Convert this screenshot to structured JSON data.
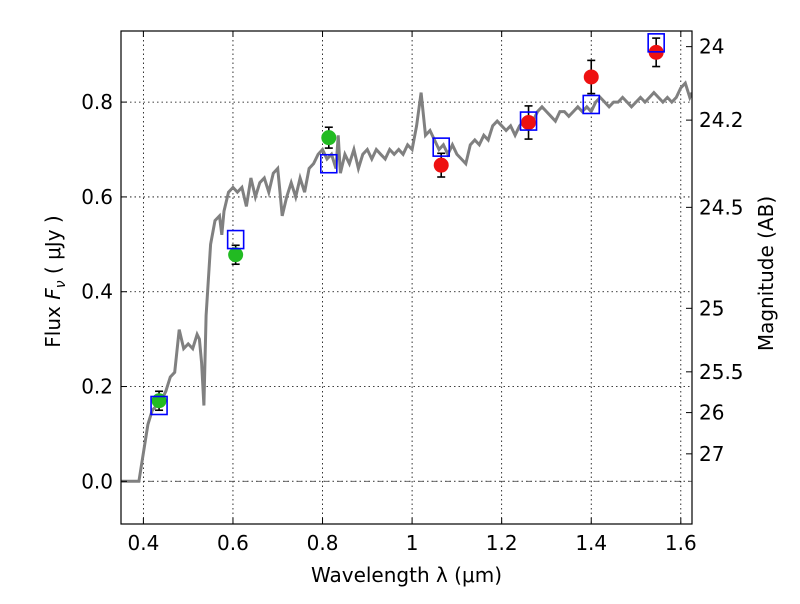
{
  "chart_data": {
    "type": "line",
    "xlabel": "Wavelength  λ (μm)",
    "ylabel_prefix": "Flux  ",
    "ylabel_symbol": "F",
    "ylabel_subscript": "ν",
    "ylabel_suffix": "  ( μJy )",
    "ylabel_right": "Magnitude (AB)",
    "xlim": [
      0.35,
      1.625
    ],
    "ylim": [
      -0.09,
      0.95
    ],
    "grid": true,
    "x_ticks": [
      0.4,
      0.6,
      0.8,
      1.0,
      1.2,
      1.4,
      1.6
    ],
    "x_tick_labels": [
      "0.4",
      "0.6",
      "0.8",
      "1",
      "1.2",
      "1.4",
      "1.6"
    ],
    "y_ticks": [
      0.0,
      0.2,
      0.4,
      0.6,
      0.8
    ],
    "y_tick_labels": [
      "0.0",
      "0.2",
      "0.4",
      "0.6",
      "0.8"
    ],
    "right_ticks": [
      {
        "label": "24",
        "flux": 0.917
      },
      {
        "label": "24.2",
        "flux": 0.762
      },
      {
        "label": "24.5",
        "flux": 0.578
      },
      {
        "label": "25",
        "flux": 0.365
      },
      {
        "label": "25.5",
        "flux": 0.231
      },
      {
        "label": "26",
        "flux": 0.145
      },
      {
        "label": "27",
        "flux": 0.058
      }
    ],
    "zero_line": 0.0,
    "model_sed": {
      "color": "#808080",
      "points": [
        [
          0.35,
          0.0
        ],
        [
          0.39,
          0.0
        ],
        [
          0.4,
          0.06
        ],
        [
          0.41,
          0.12
        ],
        [
          0.42,
          0.15
        ],
        [
          0.43,
          0.16
        ],
        [
          0.44,
          0.17
        ],
        [
          0.45,
          0.19
        ],
        [
          0.46,
          0.22
        ],
        [
          0.47,
          0.23
        ],
        [
          0.48,
          0.32
        ],
        [
          0.49,
          0.28
        ],
        [
          0.5,
          0.29
        ],
        [
          0.51,
          0.28
        ],
        [
          0.52,
          0.31
        ],
        [
          0.525,
          0.3
        ],
        [
          0.53,
          0.25
        ],
        [
          0.535,
          0.16
        ],
        [
          0.54,
          0.35
        ],
        [
          0.55,
          0.5
        ],
        [
          0.56,
          0.55
        ],
        [
          0.57,
          0.56
        ],
        [
          0.575,
          0.52
        ],
        [
          0.58,
          0.57
        ],
        [
          0.59,
          0.61
        ],
        [
          0.6,
          0.62
        ],
        [
          0.61,
          0.61
        ],
        [
          0.62,
          0.62
        ],
        [
          0.63,
          0.58
        ],
        [
          0.64,
          0.64
        ],
        [
          0.65,
          0.6
        ],
        [
          0.66,
          0.63
        ],
        [
          0.67,
          0.64
        ],
        [
          0.68,
          0.61
        ],
        [
          0.69,
          0.65
        ],
        [
          0.7,
          0.66
        ],
        [
          0.705,
          0.61
        ],
        [
          0.71,
          0.56
        ],
        [
          0.72,
          0.6
        ],
        [
          0.73,
          0.63
        ],
        [
          0.74,
          0.6
        ],
        [
          0.75,
          0.64
        ],
        [
          0.76,
          0.61
        ],
        [
          0.77,
          0.66
        ],
        [
          0.78,
          0.67
        ],
        [
          0.79,
          0.69
        ],
        [
          0.8,
          0.7
        ],
        [
          0.81,
          0.68
        ],
        [
          0.82,
          0.69
        ],
        [
          0.83,
          0.66
        ],
        [
          0.835,
          0.73
        ],
        [
          0.84,
          0.65
        ],
        [
          0.85,
          0.69
        ],
        [
          0.86,
          0.67
        ],
        [
          0.87,
          0.7
        ],
        [
          0.88,
          0.66
        ],
        [
          0.89,
          0.69
        ],
        [
          0.9,
          0.7
        ],
        [
          0.91,
          0.68
        ],
        [
          0.92,
          0.7
        ],
        [
          0.93,
          0.69
        ],
        [
          0.94,
          0.68
        ],
        [
          0.95,
          0.7
        ],
        [
          0.96,
          0.69
        ],
        [
          0.97,
          0.7
        ],
        [
          0.98,
          0.69
        ],
        [
          0.99,
          0.71
        ],
        [
          1.0,
          0.7
        ],
        [
          1.01,
          0.75
        ],
        [
          1.02,
          0.82
        ],
        [
          1.03,
          0.73
        ],
        [
          1.04,
          0.74
        ],
        [
          1.05,
          0.72
        ],
        [
          1.06,
          0.7
        ],
        [
          1.07,
          0.71
        ],
        [
          1.08,
          0.69
        ],
        [
          1.09,
          0.71
        ],
        [
          1.1,
          0.69
        ],
        [
          1.11,
          0.68
        ],
        [
          1.12,
          0.67
        ],
        [
          1.13,
          0.71
        ],
        [
          1.14,
          0.72
        ],
        [
          1.15,
          0.71
        ],
        [
          1.16,
          0.73
        ],
        [
          1.17,
          0.72
        ],
        [
          1.18,
          0.75
        ],
        [
          1.19,
          0.76
        ],
        [
          1.2,
          0.75
        ],
        [
          1.21,
          0.74
        ],
        [
          1.22,
          0.75
        ],
        [
          1.23,
          0.73
        ],
        [
          1.24,
          0.75
        ],
        [
          1.25,
          0.76
        ],
        [
          1.26,
          0.75
        ],
        [
          1.27,
          0.76
        ],
        [
          1.28,
          0.78
        ],
        [
          1.29,
          0.79
        ],
        [
          1.3,
          0.78
        ],
        [
          1.31,
          0.77
        ],
        [
          1.32,
          0.76
        ],
        [
          1.33,
          0.78
        ],
        [
          1.34,
          0.78
        ],
        [
          1.35,
          0.77
        ],
        [
          1.36,
          0.78
        ],
        [
          1.37,
          0.79
        ],
        [
          1.38,
          0.78
        ],
        [
          1.39,
          0.79
        ],
        [
          1.4,
          0.78
        ],
        [
          1.41,
          0.8
        ],
        [
          1.42,
          0.81
        ],
        [
          1.43,
          0.8
        ],
        [
          1.44,
          0.79
        ],
        [
          1.45,
          0.8
        ],
        [
          1.46,
          0.8
        ],
        [
          1.47,
          0.81
        ],
        [
          1.48,
          0.8
        ],
        [
          1.49,
          0.79
        ],
        [
          1.5,
          0.8
        ],
        [
          1.51,
          0.81
        ],
        [
          1.52,
          0.8
        ],
        [
          1.53,
          0.81
        ],
        [
          1.54,
          0.82
        ],
        [
          1.55,
          0.81
        ],
        [
          1.56,
          0.8
        ],
        [
          1.57,
          0.81
        ],
        [
          1.58,
          0.8
        ],
        [
          1.59,
          0.81
        ],
        [
          1.6,
          0.83
        ],
        [
          1.61,
          0.84
        ],
        [
          1.62,
          0.81
        ],
        [
          1.625,
          0.82
        ]
      ]
    },
    "series": [
      {
        "marker": "circle",
        "color": "#22bb22",
        "points": [
          {
            "x": 0.435,
            "y": 0.17,
            "err": 0.02
          },
          {
            "x": 0.606,
            "y": 0.478,
            "err": 0.02
          },
          {
            "x": 0.814,
            "y": 0.725,
            "err": 0.022
          }
        ]
      },
      {
        "marker": "circle",
        "color": "#ee1111",
        "points": [
          {
            "x": 1.065,
            "y": 0.667,
            "err": 0.025
          },
          {
            "x": 1.26,
            "y": 0.757,
            "err": 0.035
          },
          {
            "x": 1.4,
            "y": 0.853,
            "err": 0.035
          },
          {
            "x": 1.545,
            "y": 0.905,
            "err": 0.03
          }
        ]
      },
      {
        "marker": "open-square",
        "color": "#0000ff",
        "points": [
          {
            "x": 0.435,
            "y": 0.16
          },
          {
            "x": 0.606,
            "y": 0.51
          },
          {
            "x": 0.814,
            "y": 0.67
          },
          {
            "x": 1.065,
            "y": 0.705
          },
          {
            "x": 1.26,
            "y": 0.76
          },
          {
            "x": 1.4,
            "y": 0.795
          },
          {
            "x": 1.545,
            "y": 0.925
          }
        ]
      }
    ]
  }
}
